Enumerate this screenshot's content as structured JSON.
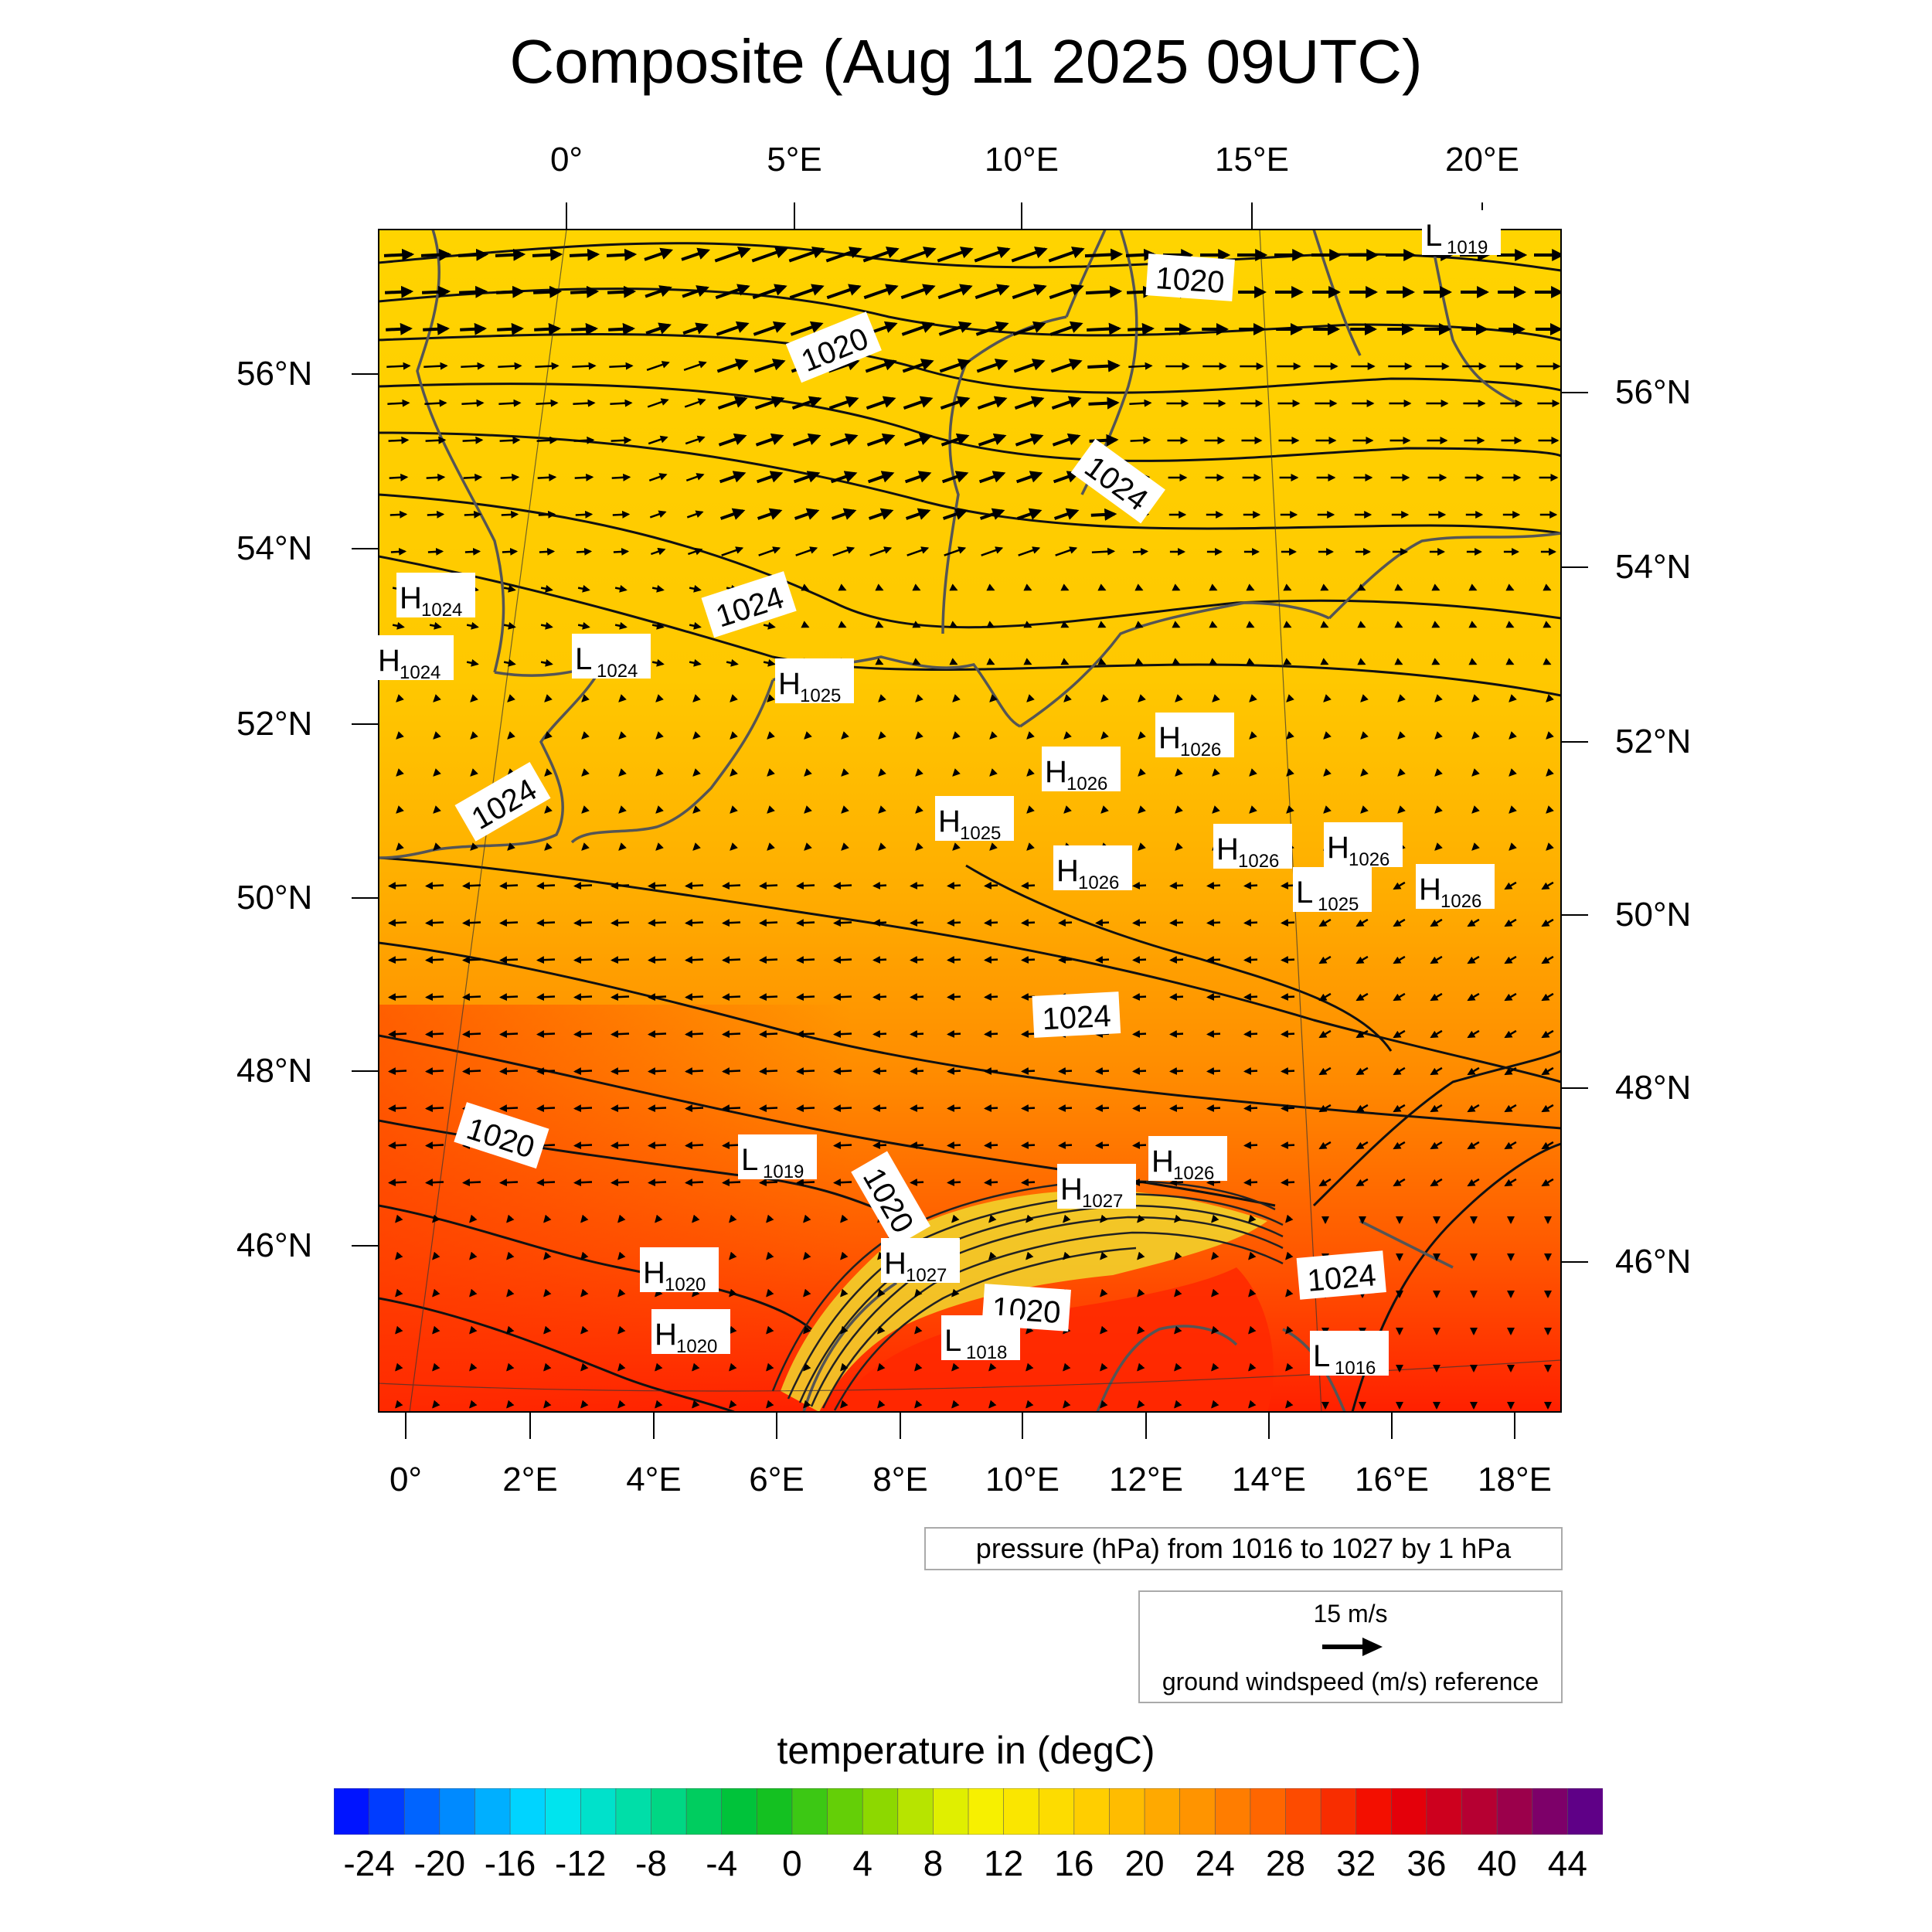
{
  "title": "Composite (Aug 11 2025 09UTC)",
  "map": {
    "top_lon_labels": [
      "0°",
      "5°E",
      "10°E",
      "15°E",
      "20°E"
    ],
    "bottom_lon_labels": [
      "0°",
      "2°E",
      "4°E",
      "6°E",
      "8°E",
      "10°E",
      "12°E",
      "14°E",
      "16°E",
      "18°E"
    ],
    "left_lat_labels": [
      "56°N",
      "54°N",
      "52°N",
      "50°N",
      "48°N",
      "46°N"
    ],
    "right_lat_labels": [
      "56°N",
      "54°N",
      "52°N",
      "50°N",
      "48°N",
      "46°N"
    ],
    "isobar_labels": [
      "1020",
      "1020",
      "1024",
      "1024",
      "1024",
      "1024",
      "1020",
      "1020",
      "1020",
      "1024"
    ],
    "pressure_centers": [
      {
        "type": "H",
        "value": "1024"
      },
      {
        "type": "H",
        "value": "1024"
      },
      {
        "type": "L",
        "value": "1024"
      },
      {
        "type": "H",
        "value": "1025"
      },
      {
        "type": "H",
        "value": "1026"
      },
      {
        "type": "H",
        "value": "1026"
      },
      {
        "type": "H",
        "value": "1025"
      },
      {
        "type": "H",
        "value": "1026"
      },
      {
        "type": "H",
        "value": "1026"
      },
      {
        "type": "H",
        "value": "1026"
      },
      {
        "type": "L",
        "value": "1025"
      },
      {
        "type": "H",
        "value": "1026"
      },
      {
        "type": "L",
        "value": "1019"
      },
      {
        "type": "H",
        "value": "1026"
      },
      {
        "type": "H",
        "value": "1027"
      },
      {
        "type": "H",
        "value": "1027"
      },
      {
        "type": "H",
        "value": "1020"
      },
      {
        "type": "H",
        "value": "1020"
      },
      {
        "type": "L",
        "value": "1018"
      },
      {
        "type": "L",
        "value": "1016"
      },
      {
        "type": "L",
        "value": "1019"
      }
    ],
    "colors": {
      "north": "#ffd200",
      "center": "#ffb400",
      "south": "#ff5a00",
      "far_south": "#ff1e00",
      "alps": "#f5e628",
      "contour": "#111111",
      "coast": "#555555"
    }
  },
  "pressure_legend": "pressure (hPa) from 1016 to 1027 by 1 hPa",
  "wind_legend": {
    "ref_speed": "15 m/s",
    "label": "ground windspeed (m/s) reference"
  },
  "colorbar": {
    "title": "temperature in (degC)",
    "labels": [
      "-24",
      "-20",
      "-16",
      "-12",
      "-8",
      "-4",
      "0",
      "4",
      "8",
      "12",
      "16",
      "20",
      "24",
      "28",
      "32",
      "36",
      "40",
      "44"
    ],
    "min": -26,
    "max": 46,
    "step": 2
  }
}
